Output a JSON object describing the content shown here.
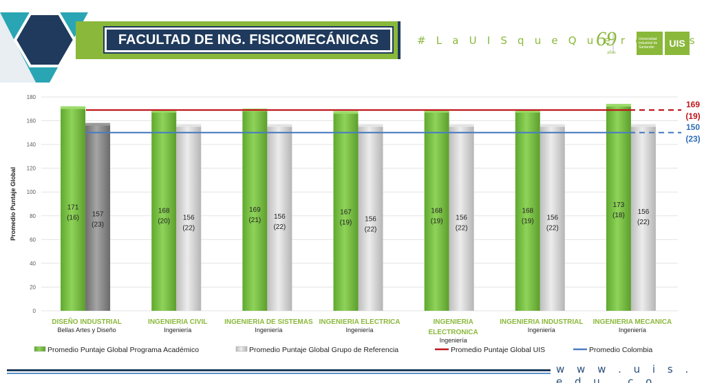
{
  "header": {
    "title": "FACULTAD DE ING. FISICOMECÁNICAS",
    "hashtag": "# L a U I S q u e Q u e r e m o s",
    "logo_years": "69",
    "logo_years_sub": "años",
    "logo_university": "Universidad Industrial de Santander",
    "logo_mark": "UIS"
  },
  "footer": {
    "website": "w w w . u i s . e d u . c o"
  },
  "colors": {
    "green": "#7dc243",
    "gray": "#cfcfcf",
    "dark_gray": "#8a8a8a",
    "uis_line": "#c0151b",
    "colombia_line": "#4a7dc0",
    "category_label": "#8ab83a",
    "navy": "#1f3a5c"
  },
  "chart_data": {
    "type": "bar",
    "ylabel": "Promedio Puntaje Global",
    "ylim": [
      0,
      180
    ],
    "yticks": [
      0,
      20,
      40,
      60,
      80,
      100,
      120,
      140,
      160,
      180
    ],
    "categories": [
      {
        "name": "DISEÑO INDUSTRIAL",
        "school": "Bellas Artes y Diseño"
      },
      {
        "name": "INGENIERIA CIVIL",
        "school": "Ingeniería"
      },
      {
        "name": "INGENIERIA DE SISTEMAS",
        "school": "Ingeniería"
      },
      {
        "name": "INGENIERIA ELECTRICA",
        "school": "Ingeniería"
      },
      {
        "name": "INGENIERIA ELECTRONICA",
        "school": "Ingeniería"
      },
      {
        "name": "INGENIERIA INDUSTRIAL",
        "school": "Ingeniería"
      },
      {
        "name": "INGENIERIA MECANICA",
        "school": "Ingeniería"
      }
    ],
    "series": [
      {
        "name": "Promedio Puntaje Global Programa Académico",
        "values": [
          171,
          168,
          169,
          167,
          168,
          168,
          173
        ],
        "labels": [
          "171",
          "168",
          "169",
          "167",
          "168",
          "168",
          "173"
        ],
        "sublabels": [
          "(16)",
          "(20)",
          "(21)",
          "(19)",
          "(19)",
          "(19)",
          "(18)"
        ]
      },
      {
        "name": "Promedio Puntaje Global Grupo de Referencia",
        "values": [
          157,
          156,
          156,
          156,
          156,
          156,
          156
        ],
        "labels": [
          "157",
          "156",
          "156",
          "156",
          "156",
          "156",
          "156"
        ],
        "sublabels": [
          "(23)",
          "(22)",
          "(22)",
          "(22)",
          "(22)",
          "(22)",
          "(22)"
        ]
      }
    ],
    "reference_lines": [
      {
        "name": "Promedio Puntaje Global UIS",
        "value": 169,
        "label": "169",
        "sublabel": "(19)"
      },
      {
        "name": "Promedio Colombia",
        "value": 150,
        "label": "150",
        "sublabel": "(23)"
      }
    ],
    "legend_position": "bottom"
  }
}
